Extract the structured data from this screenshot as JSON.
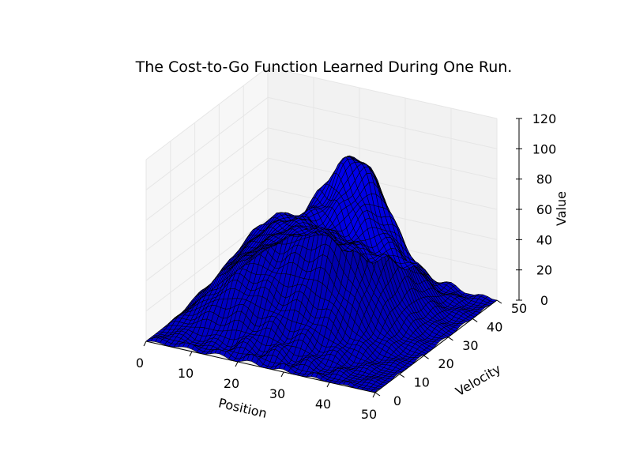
{
  "chart_data": {
    "type": "surface",
    "title": "The Cost-to-Go Function Learned During One Run.",
    "xlabel": "Position",
    "ylabel": "Velocity",
    "zlabel": "Value",
    "x_ticks": [
      "0",
      "10",
      "20",
      "30",
      "40",
      "50"
    ],
    "y_ticks": [
      "0",
      "10",
      "20",
      "30",
      "40",
      "50"
    ],
    "z_ticks": [
      "0",
      "20",
      "40",
      "60",
      "80",
      "100",
      "120"
    ],
    "xlim": [
      0,
      50
    ],
    "ylim": [
      0,
      50
    ],
    "zlim": [
      0,
      120
    ],
    "grid": true,
    "surface_color": "#0000ff",
    "edge_color": "#000000",
    "pane_color": "#f2f2f2",
    "profile_at_velocity_0": {
      "position": [
        0,
        5,
        10,
        15,
        20,
        25,
        30,
        35,
        40,
        45,
        50
      ],
      "value": [
        0,
        2,
        3,
        3,
        1,
        0,
        0,
        0,
        0,
        0,
        0
      ]
    },
    "profile_at_position_0": {
      "velocity": [
        0,
        5,
        10,
        15,
        20,
        25,
        30,
        35,
        40,
        45,
        50
      ],
      "value": [
        0,
        40,
        42,
        42,
        44,
        48,
        52,
        50,
        45,
        40,
        38
      ]
    },
    "peak": {
      "position": 30,
      "velocity": 30,
      "value": 100
    }
  }
}
